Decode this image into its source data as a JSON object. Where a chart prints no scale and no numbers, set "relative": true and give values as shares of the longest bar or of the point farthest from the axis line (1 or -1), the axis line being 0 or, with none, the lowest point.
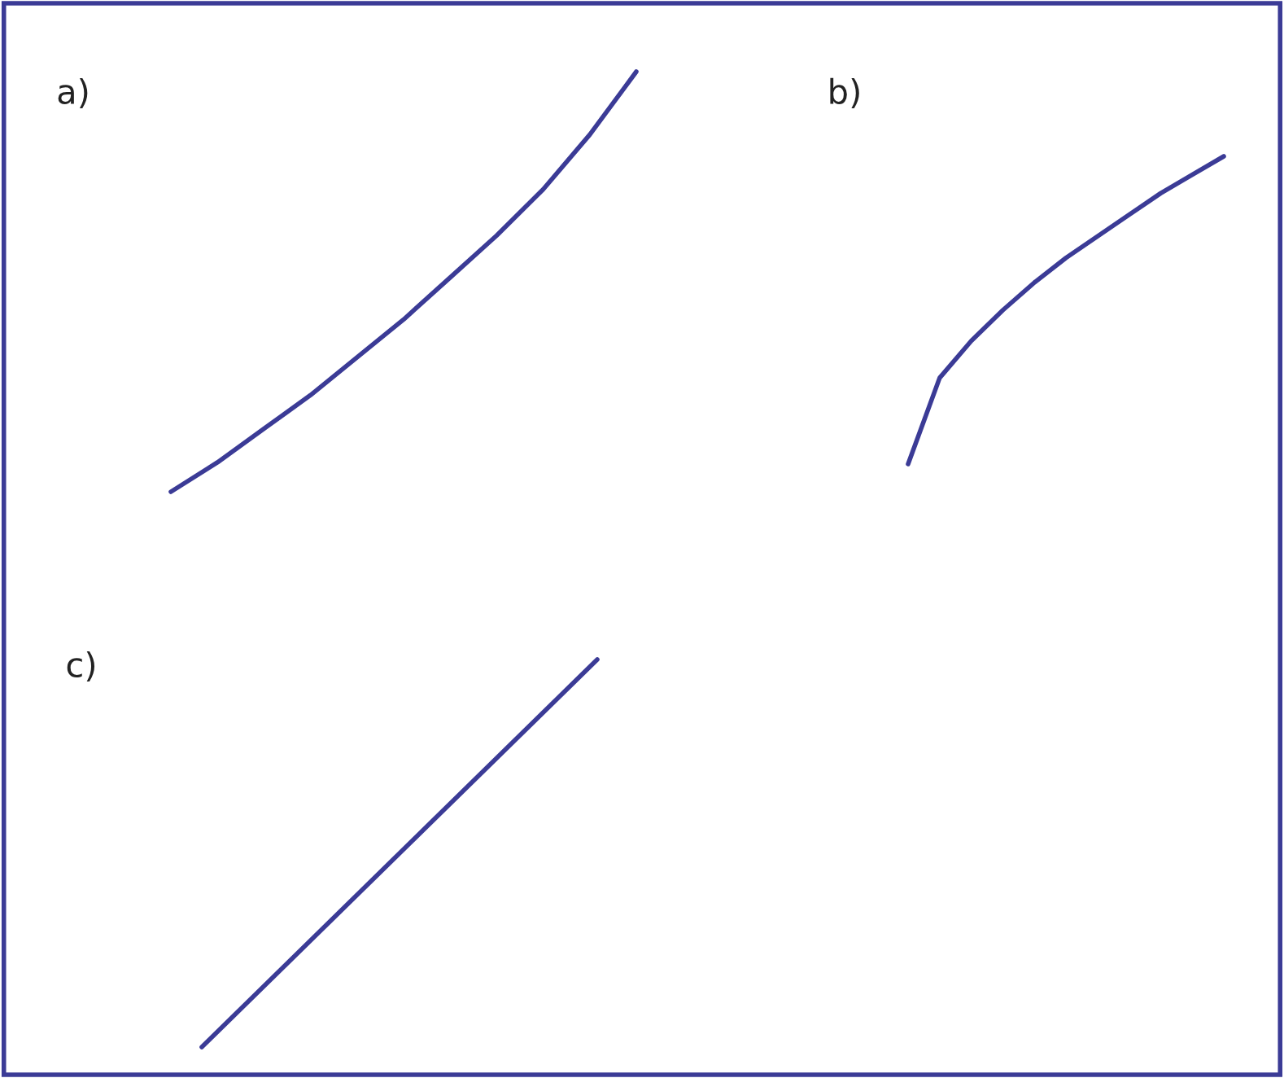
{
  "chart_data": [
    {
      "type": "line",
      "title": "a)",
      "relative": true,
      "tick_labels": false,
      "categories": [
        null,
        null,
        null,
        null,
        null,
        null,
        null,
        null,
        null,
        null,
        null
      ],
      "series": [
        {
          "color": "#3b3b96",
          "values": [
            0,
            0.07,
            0.15,
            0.23,
            0.32,
            0.41,
            0.51,
            0.61,
            0.72,
            0.85,
            1.0
          ]
        }
      ]
    },
    {
      "type": "line",
      "title": "b)",
      "relative": true,
      "tick_labels": false,
      "categories": [
        null,
        null,
        null,
        null,
        null,
        null,
        null,
        null,
        null,
        null,
        null
      ],
      "series": [
        {
          "color": "#3b3b96",
          "values": [
            0,
            0.28,
            0.4,
            0.5,
            0.59,
            0.67,
            0.74,
            0.81,
            0.88,
            0.94,
            1.0
          ]
        }
      ]
    },
    {
      "type": "line",
      "title": "c)",
      "relative": true,
      "tick_labels": false,
      "categories": [
        null,
        null
      ],
      "series": [
        {
          "color": "#3b3b96",
          "values": [
            0,
            1.0
          ]
        }
      ]
    }
  ]
}
